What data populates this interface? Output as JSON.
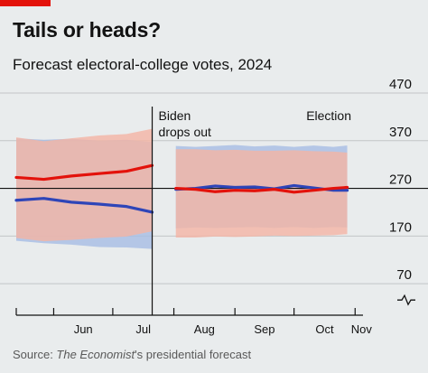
{
  "header": {
    "title": "Tails or heads?",
    "subtitle": "Forecast electoral-college votes, 2024"
  },
  "source": {
    "prefix": "Source: ",
    "publication": "The Economist",
    "suffix": "'s presidential forecast"
  },
  "colors": {
    "background": "#e9eced",
    "brand_red": "#e3120b",
    "republican": "#e3120b",
    "democrat": "#2e45b8",
    "republican_band": "#f4b4a4",
    "democrat_band": "#a6bde4",
    "grid": "#c2c5c7"
  },
  "chart_data": {
    "type": "line",
    "title": "Forecast electoral-college votes, 2024",
    "ylim": [
      40,
      470
    ],
    "yticks": [
      70,
      170,
      270,
      370,
      470
    ],
    "y_axis_break_below": 70,
    "threshold_line": 270,
    "x_months": [
      "Jun",
      "Jul",
      "Aug",
      "Sep",
      "Oct",
      "Nov"
    ],
    "x_range": [
      "2024-05-13",
      "2024-11-05"
    ],
    "annotations": [
      {
        "text": [
          "Biden",
          "drops out"
        ],
        "date": "2024-07-21"
      },
      {
        "text": [
          "Election"
        ],
        "date": "2024-11-05"
      }
    ],
    "phases": [
      {
        "dates": [
          "2024-05-13",
          "2024-05-27",
          "2024-06-10",
          "2024-06-24",
          "2024-07-08",
          "2024-07-21"
        ],
        "series": [
          {
            "values": [
              293,
              289,
              296,
              301,
              306,
              318
            ],
            "band_low": [
              166,
              159,
              162,
              166,
              169,
              180
            ],
            "band_high": [
              377,
              369,
              375,
              381,
              384,
              395
            ]
          },
          {
            "values": [
              245,
              249,
              241,
              237,
              232,
              220
            ],
            "band_low": [
              160,
              155,
              152,
              147,
              146,
              143
            ],
            "band_high": [
              375,
              372,
              374,
              370,
              372,
              367
            ]
          }
        ]
      },
      {
        "dates": [
          "2024-08-02",
          "2024-08-12",
          "2024-08-22",
          "2024-09-01",
          "2024-09-11",
          "2024-09-21",
          "2024-10-01",
          "2024-10-11",
          "2024-10-21",
          "2024-10-28"
        ],
        "series": [
          {
            "values": [
              270,
              268,
              263,
              266,
              265,
              268,
              262,
              266,
              270,
              272
            ],
            "band_low": [
              167,
              167,
              169,
              168,
              169,
              171,
              170,
              171,
              172,
              174
            ],
            "band_high": [
              352,
              352,
              350,
              351,
              349,
              349,
              350,
              348,
              347,
              345
            ]
          },
          {
            "values": [
              268,
              270,
              275,
              272,
              273,
              269,
              276,
              271,
              266,
              266
            ],
            "band_low": [
              186,
              188,
              187,
              188,
              189,
              187,
              189,
              187,
              189,
              188
            ],
            "band_high": [
              359,
              357,
              359,
              361,
              358,
              360,
              357,
              360,
              357,
              360
            ]
          }
        ]
      }
    ]
  }
}
